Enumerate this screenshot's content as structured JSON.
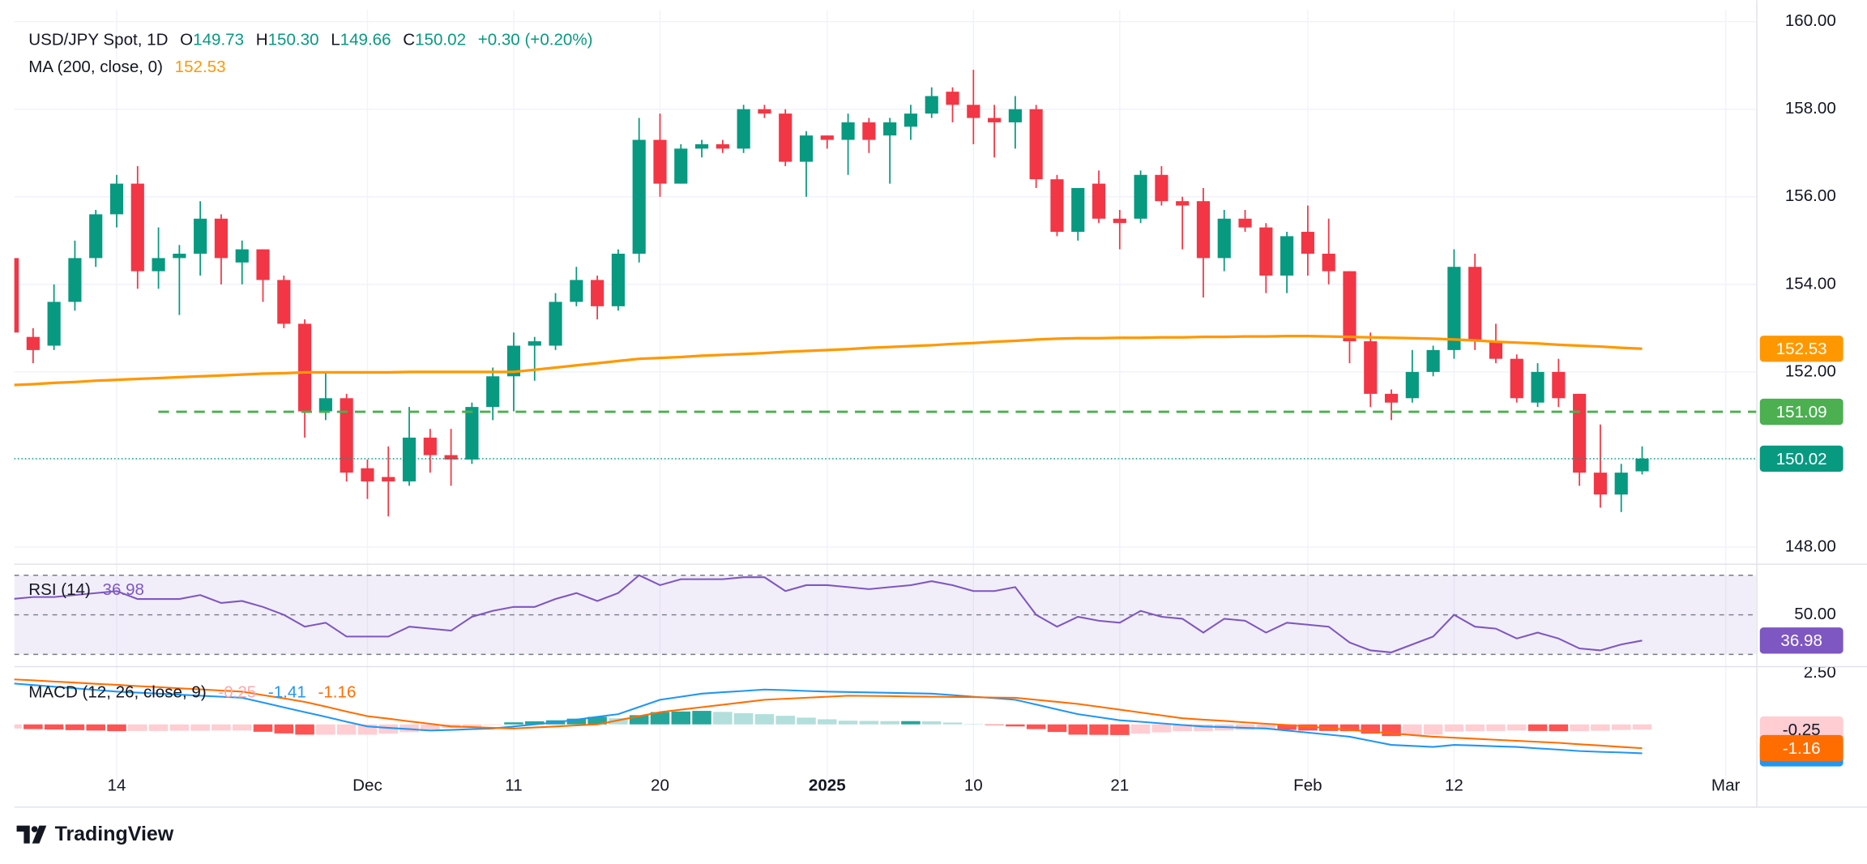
{
  "brand": "TradingView",
  "chart_data": [
    {
      "type": "candlestick",
      "title": "USD/JPY Spot, 1D",
      "ohlc_legend": [
        [
          "O",
          "149.73"
        ],
        [
          "H",
          "150.30"
        ],
        [
          "L",
          "149.66"
        ],
        [
          "C",
          "150.02"
        ]
      ],
      "change": "+0.30 (+0.20%)",
      "categories": [
        null,
        null,
        null,
        null,
        null,
        "14",
        null,
        null,
        null,
        null,
        null,
        null,
        null,
        null,
        null,
        null,
        null,
        "Dec",
        null,
        null,
        null,
        null,
        null,
        null,
        "11",
        null,
        null,
        null,
        null,
        null,
        null,
        "20",
        null,
        null,
        null,
        null,
        null,
        null,
        null,
        "2025",
        null,
        null,
        null,
        null,
        null,
        null,
        "10",
        null,
        null,
        null,
        null,
        null,
        null,
        "21",
        null,
        null,
        null,
        null,
        null,
        null,
        null,
        null,
        "Feb",
        null,
        null,
        null,
        null,
        null,
        null,
        "12",
        null,
        null,
        null,
        null,
        null,
        null,
        null,
        null,
        null,
        null,
        null,
        null,
        "Mar"
      ],
      "open": [
        154.6,
        152.8,
        152.6,
        153.6,
        154.6,
        155.6,
        156.3,
        154.3,
        154.6,
        154.7,
        155.5,
        154.5,
        154.8,
        154.1,
        153.1,
        151.1,
        151.4,
        149.8,
        149.6,
        149.5,
        150.5,
        150.1,
        150.0,
        151.2,
        151.9,
        152.6,
        152.6,
        153.6,
        154.1,
        153.5,
        154.7,
        157.3,
        156.3,
        157.1,
        157.2,
        157.1,
        158.0,
        157.9,
        156.8,
        157.4,
        157.3,
        157.7,
        157.4,
        157.6,
        157.9,
        158.4,
        158.1,
        157.8,
        157.7,
        158.0,
        156.4,
        155.2,
        156.3,
        155.5,
        155.5,
        156.5,
        155.9,
        155.9,
        154.6,
        155.5,
        155.3,
        154.2,
        155.2,
        154.7,
        154.3,
        152.7,
        151.5,
        151.4,
        152.0,
        152.5,
        154.4,
        152.7,
        152.3,
        151.3,
        152.0,
        151.5,
        149.7,
        149.2,
        149.73,
        null,
        null,
        null,
        null
      ],
      "high": [
        154.8,
        153.0,
        154.0,
        155.0,
        155.7,
        156.5,
        156.7,
        155.3,
        154.9,
        155.9,
        155.6,
        155.0,
        154.8,
        154.2,
        153.2,
        152.0,
        151.5,
        150.0,
        150.3,
        151.2,
        150.7,
        150.7,
        151.3,
        152.1,
        152.9,
        152.8,
        153.8,
        154.4,
        154.2,
        154.8,
        157.8,
        157.9,
        157.2,
        157.3,
        157.3,
        158.1,
        158.1,
        158.0,
        157.5,
        157.4,
        157.9,
        157.8,
        157.8,
        158.1,
        158.5,
        158.5,
        158.9,
        158.1,
        158.3,
        158.1,
        156.5,
        156.2,
        156.6,
        155.7,
        156.6,
        156.7,
        156.0,
        156.2,
        155.7,
        155.7,
        155.4,
        155.2,
        155.8,
        155.5,
        154.3,
        152.9,
        151.6,
        152.5,
        152.6,
        154.8,
        154.7,
        153.1,
        152.4,
        152.2,
        152.3,
        151.5,
        150.8,
        149.9,
        150.3,
        null,
        null,
        null,
        null
      ],
      "low": [
        152.6,
        152.2,
        152.5,
        153.4,
        154.4,
        155.3,
        153.9,
        153.9,
        153.3,
        154.2,
        154.0,
        154.0,
        153.6,
        153.0,
        150.5,
        150.9,
        149.5,
        149.1,
        148.7,
        149.4,
        149.7,
        149.4,
        149.9,
        150.9,
        151.1,
        151.8,
        152.5,
        153.5,
        153.2,
        153.4,
        154.5,
        156.0,
        156.3,
        156.9,
        157.0,
        157.0,
        157.8,
        156.7,
        156.0,
        157.1,
        156.5,
        157.0,
        156.3,
        157.3,
        157.8,
        157.7,
        157.2,
        156.9,
        157.1,
        156.2,
        155.1,
        155.0,
        155.4,
        154.8,
        155.4,
        155.8,
        154.8,
        153.7,
        154.3,
        155.2,
        153.8,
        153.8,
        154.2,
        154.0,
        152.2,
        151.2,
        150.9,
        151.3,
        151.9,
        152.3,
        152.5,
        152.2,
        151.3,
        151.2,
        151.2,
        149.4,
        148.9,
        148.8,
        149.66,
        null,
        null,
        null,
        null
      ],
      "close": [
        152.9,
        152.5,
        153.6,
        154.6,
        155.6,
        156.3,
        154.3,
        154.6,
        154.7,
        155.5,
        154.6,
        154.8,
        154.1,
        153.1,
        151.1,
        151.4,
        149.7,
        149.5,
        149.5,
        150.5,
        150.1,
        150.0,
        151.2,
        151.9,
        152.6,
        152.7,
        153.6,
        154.1,
        153.5,
        154.7,
        157.3,
        156.3,
        157.1,
        157.2,
        157.1,
        158.0,
        157.9,
        156.8,
        157.4,
        157.3,
        157.7,
        157.3,
        157.7,
        157.9,
        158.3,
        158.1,
        157.8,
        157.7,
        158.0,
        156.4,
        155.2,
        156.2,
        155.5,
        155.4,
        156.5,
        155.9,
        155.8,
        154.6,
        155.5,
        155.3,
        154.2,
        155.1,
        154.7,
        154.3,
        152.7,
        151.5,
        151.3,
        152.0,
        152.5,
        154.4,
        152.7,
        152.3,
        151.4,
        152.0,
        151.4,
        149.7,
        149.2,
        149.7,
        150.02,
        null,
        null,
        null,
        null
      ],
      "up_color": "#089981",
      "down_color": "#f23645",
      "ma": {
        "name": "MA (200, close, 0)",
        "color": "#ff9800",
        "values": [
          151.7,
          151.72,
          151.75,
          151.77,
          151.8,
          151.82,
          151.84,
          151.86,
          151.88,
          151.9,
          151.92,
          151.94,
          151.96,
          151.97,
          151.99,
          151.99,
          151.99,
          151.99,
          151.99,
          152,
          152,
          152,
          152,
          152,
          152,
          152.05,
          152.1,
          152.15,
          152.2,
          152.25,
          152.3,
          152.32,
          152.34,
          152.37,
          152.39,
          152.41,
          152.43,
          152.46,
          152.48,
          152.5,
          152.52,
          152.55,
          152.57,
          152.59,
          152.61,
          152.64,
          152.66,
          152.69,
          152.71,
          152.74,
          152.76,
          152.77,
          152.77,
          152.78,
          152.78,
          152.79,
          152.79,
          152.8,
          152.8,
          152.81,
          152.81,
          152.82,
          152.82,
          152.81,
          152.8,
          152.79,
          152.78,
          152.77,
          152.76,
          152.74,
          152.72,
          152.69,
          152.67,
          152.65,
          152.62,
          152.6,
          152.58,
          152.55,
          152.53,
          null,
          null,
          null,
          null
        ]
      },
      "hline": {
        "value": 151.09,
        "color": "#4caf50"
      },
      "ylim": [
        147.65,
        160.27
      ],
      "yticks": [
        {
          "value": 148,
          "label": "148.00"
        },
        {
          "value": 150,
          "label": "150.00"
        },
        {
          "value": 152,
          "label": "152.00"
        },
        {
          "value": 154,
          "label": "154.00"
        },
        {
          "value": 156,
          "label": "156.00"
        },
        {
          "value": 158,
          "label": "158.00"
        },
        {
          "value": 160,
          "label": "160.00"
        }
      ],
      "grid": true
    },
    {
      "type": "line",
      "title": "RSI (14)",
      "series": [
        {
          "color": "#7e57c2",
          "values": [
            58,
            59,
            59,
            60,
            61,
            62,
            58,
            58,
            58,
            60,
            56,
            57,
            54,
            50,
            44,
            46,
            39,
            39,
            39,
            44,
            43,
            42,
            49,
            52,
            54,
            54,
            58,
            61,
            57,
            61,
            70,
            65,
            68,
            68,
            68,
            69,
            69,
            62,
            65,
            65,
            64,
            63,
            64,
            65,
            67,
            65,
            62,
            62,
            64,
            50,
            44,
            49,
            47,
            46,
            52,
            49,
            48,
            41,
            48,
            47,
            41,
            46,
            45,
            44,
            36,
            32,
            31,
            35,
            39,
            50,
            44,
            43,
            38,
            41,
            38,
            33,
            32,
            35,
            36.98,
            null,
            null,
            null,
            null
          ]
        }
      ],
      "levels": [
        70,
        30
      ],
      "band_color": "#7e57c2",
      "ylim": [
        24.7,
        74.7
      ],
      "yticks": [
        {
          "value": 50,
          "label": "50.00"
        }
      ]
    },
    {
      "type": "macd",
      "title": "MACD (12, 26, close, 9)",
      "series": [
        {
          "style": "histogram",
          "color": "#f7a9b1",
          "up_strong": "#26a69a",
          "up_light": "#b2dfdb",
          "down_strong": "#ff5252",
          "down_light": "#ffcdd2",
          "values": [
            -0.2,
            -0.23,
            -0.25,
            -0.28,
            -0.3,
            -0.33,
            -0.32,
            -0.32,
            -0.31,
            -0.31,
            -0.3,
            -0.3,
            -0.36,
            -0.44,
            -0.5,
            -0.5,
            -0.5,
            -0.5,
            -0.45,
            -0.38,
            -0.33,
            -0.17,
            -0.1,
            -0.03,
            0.1,
            0.15,
            0.2,
            0.28,
            0.37,
            0.3,
            0.45,
            0.6,
            0.63,
            0.66,
            0.61,
            0.55,
            0.5,
            0.42,
            0.33,
            0.25,
            0.18,
            0.17,
            0.16,
            0.16,
            0.15,
            0.09,
            0.02,
            -0.03,
            -0.1,
            -0.23,
            -0.37,
            -0.5,
            -0.51,
            -0.52,
            -0.45,
            -0.39,
            -0.33,
            -0.33,
            -0.3,
            -0.27,
            -0.23,
            -0.27,
            -0.3,
            -0.32,
            -0.33,
            -0.45,
            -0.57,
            -0.53,
            -0.5,
            -0.35,
            -0.33,
            -0.32,
            -0.3,
            -0.32,
            -0.33,
            -0.33,
            -0.31,
            -0.27,
            -0.25,
            null,
            null,
            null,
            null
          ]
        },
        {
          "style": "line",
          "color": "#2196f3",
          "values": [
            2.0,
            1.92,
            1.84,
            1.76,
            1.68,
            1.6,
            1.55,
            1.5,
            1.45,
            1.4,
            1.35,
            1.3,
            1.07,
            0.83,
            0.6,
            0.37,
            0.13,
            -0.1,
            -0.17,
            -0.23,
            -0.3,
            -0.27,
            -0.23,
            -0.2,
            -0.1,
            0.0,
            0.1,
            0.23,
            0.37,
            0.5,
            0.85,
            1.2,
            1.35,
            1.5,
            1.57,
            1.63,
            1.7,
            1.67,
            1.63,
            1.6,
            1.58,
            1.56,
            1.54,
            1.52,
            1.5,
            1.43,
            1.35,
            1.28,
            1.2,
            0.97,
            0.73,
            0.5,
            0.35,
            0.2,
            0.13,
            0.05,
            -0.03,
            -0.1,
            -0.13,
            -0.17,
            -0.2,
            -0.3,
            -0.4,
            -0.5,
            -0.6,
            -0.8,
            -1.0,
            -1.05,
            -1.1,
            -1.0,
            -1.03,
            -1.07,
            -1.1,
            -1.17,
            -1.23,
            -1.3,
            -1.34,
            -1.37,
            -1.41,
            null,
            null,
            null,
            null
          ]
        },
        {
          "style": "line",
          "color": "#ff6d00",
          "values": [
            2.2,
            2.15,
            2.09,
            2.04,
            1.98,
            1.93,
            1.87,
            1.82,
            1.76,
            1.71,
            1.65,
            1.6,
            1.43,
            1.27,
            1.1,
            0.87,
            0.63,
            0.4,
            0.28,
            0.15,
            0.03,
            -0.1,
            -0.13,
            -0.17,
            -0.2,
            -0.15,
            -0.1,
            -0.05,
            0.0,
            0.2,
            0.4,
            0.6,
            0.72,
            0.84,
            0.96,
            1.08,
            1.2,
            1.25,
            1.3,
            1.35,
            1.4,
            1.39,
            1.38,
            1.36,
            1.35,
            1.34,
            1.33,
            1.31,
            1.3,
            1.2,
            1.1,
            1.0,
            0.86,
            0.72,
            0.58,
            0.44,
            0.3,
            0.23,
            0.17,
            0.1,
            0.03,
            -0.03,
            -0.1,
            -0.18,
            -0.27,
            -0.35,
            -0.43,
            -0.52,
            -0.6,
            -0.65,
            -0.7,
            -0.75,
            -0.8,
            -0.85,
            -0.9,
            -0.97,
            -1.03,
            -1.1,
            -1.16,
            null,
            null,
            null,
            null
          ]
        }
      ],
      "ylim": [
        -2.73,
        2.79
      ],
      "yticks": [
        {
          "value": 2.5,
          "label": "2.50"
        }
      ]
    }
  ]
}
